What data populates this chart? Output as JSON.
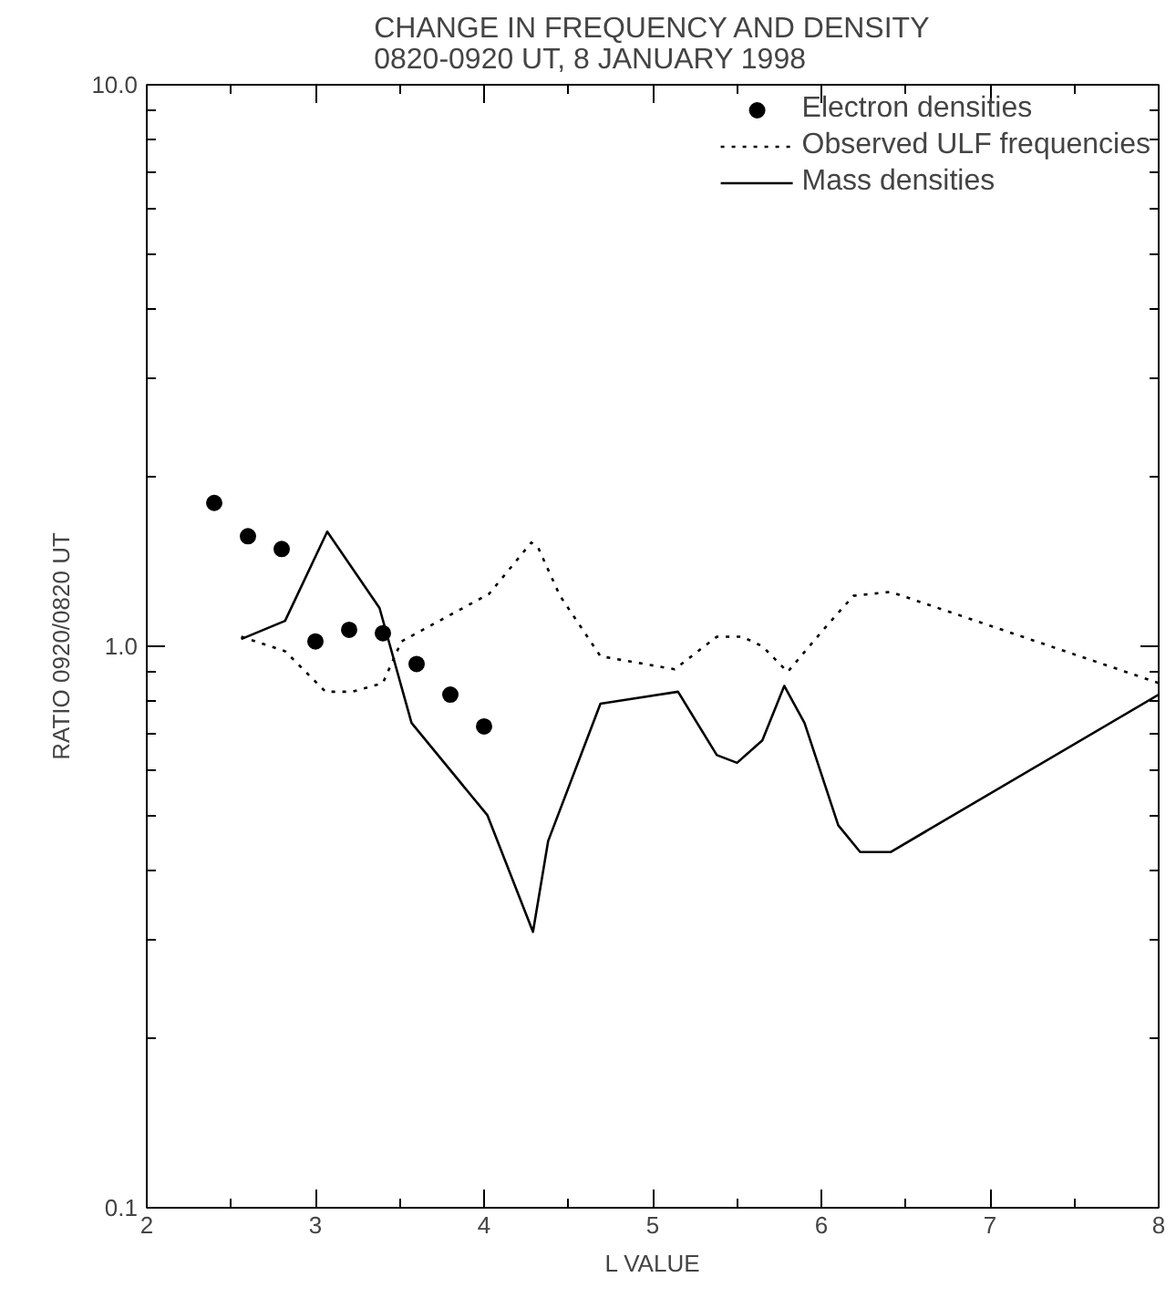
{
  "chart_data": {
    "type": "line",
    "title": "CHANGE IN FREQUENCY AND DENSITY\n0820-0920 UT, 8 JANUARY 1998",
    "xlabel": "L VALUE",
    "ylabel": "RATIO 0920/0820 UT",
    "log": "y",
    "grid": false,
    "legend": "top right",
    "xlim": [
      2,
      8
    ],
    "ylim": [
      0.1,
      10
    ],
    "xticks": [
      2,
      {
        "value": 2.5,
        "label": null
      },
      3,
      {
        "value": 3.5,
        "label": null
      },
      4,
      {
        "value": 4.5,
        "label": null
      },
      5,
      {
        "value": 5.5,
        "label": null
      },
      6,
      {
        "value": 6.5,
        "label": null
      },
      7,
      {
        "value": 7.5,
        "label": null
      },
      8
    ],
    "yticks": [
      {
        "value": 0.1,
        "label": "0.1"
      },
      {
        "value": 0.2,
        "label": null
      },
      {
        "value": 0.3,
        "label": null
      },
      {
        "value": 0.4,
        "label": null
      },
      {
        "value": 0.5,
        "label": null
      },
      {
        "value": 0.6,
        "label": null
      },
      {
        "value": 0.7,
        "label": null
      },
      {
        "value": 0.8,
        "label": null
      },
      {
        "value": 0.9,
        "label": null
      },
      {
        "value": 1,
        "label": "1.0"
      },
      {
        "value": 2,
        "label": null
      },
      {
        "value": 3,
        "label": null
      },
      {
        "value": 4,
        "label": null
      },
      {
        "value": 5,
        "label": null
      },
      {
        "value": 6,
        "label": null
      },
      {
        "value": 7,
        "label": null
      },
      {
        "value": 8,
        "label": null
      },
      {
        "value": 9,
        "label": null
      },
      {
        "value": 10,
        "label": "10.0"
      }
    ],
    "series": [
      {
        "name": "Electron densities",
        "type": "scatter",
        "marker": "circle",
        "color": "#000000",
        "x": [
          2.4,
          2.6,
          2.8,
          3.0,
          3.2,
          3.4,
          3.6,
          3.8,
          4.0
        ],
        "values": [
          1.8,
          1.57,
          1.49,
          1.02,
          1.07,
          1.055,
          0.93,
          0.82,
          0.72
        ]
      },
      {
        "name": "Observed ULF frequencies",
        "line_style": "dotted",
        "color": "#000000",
        "x": [
          2.56,
          2.82,
          3.06,
          3.22,
          3.4,
          3.51,
          4.03,
          4.28,
          4.32,
          4.45,
          4.69,
          4.95,
          5.13,
          5.38,
          5.53,
          5.65,
          5.8,
          6.0,
          6.19,
          6.41,
          8.0
        ],
        "values": [
          1.04,
          0.98,
          0.83,
          0.83,
          0.86,
          1.02,
          1.24,
          1.53,
          1.5,
          1.23,
          0.96,
          0.93,
          0.91,
          1.04,
          1.04,
          1.0,
          0.9,
          1.06,
          1.23,
          1.25,
          0.86
        ]
      },
      {
        "name": "Mass densities",
        "line_style": "solid",
        "color": "#000000",
        "x": [
          2.56,
          2.82,
          3.07,
          3.38,
          3.57,
          4.02,
          4.29,
          4.38,
          4.69,
          5.15,
          5.38,
          5.5,
          5.65,
          5.78,
          5.9,
          6.1,
          6.23,
          6.41,
          8.0
        ],
        "values": [
          1.03,
          1.11,
          1.6,
          1.17,
          0.73,
          0.5,
          0.31,
          0.45,
          0.79,
          0.83,
          0.64,
          0.62,
          0.68,
          0.85,
          0.73,
          0.48,
          0.43,
          0.43,
          0.82
        ]
      }
    ]
  }
}
